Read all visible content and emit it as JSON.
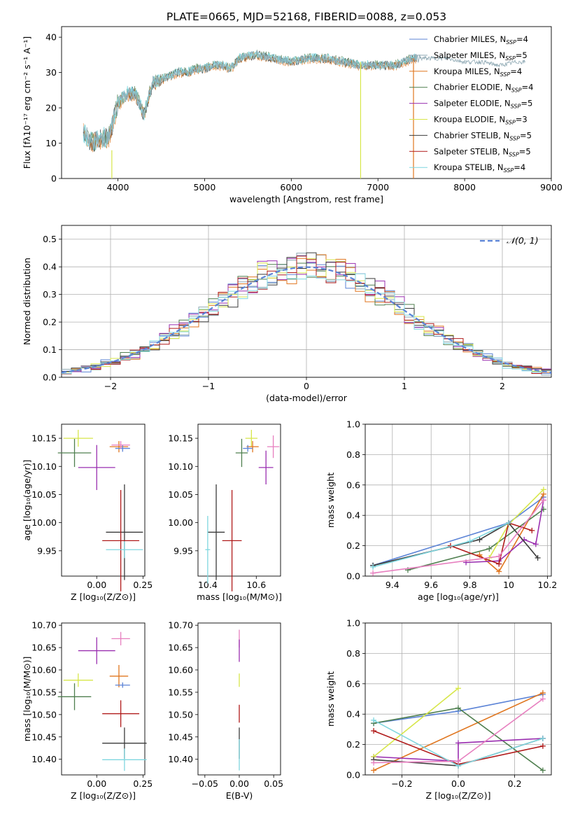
{
  "figure": {
    "title": "PLATE=0665, MJD=52168, FIBERID=0088, z=0.053"
  },
  "colors": {
    "chabrier_miles": "#5b83d6",
    "salpeter_miles": "#8fa9b4",
    "kroupa_miles": "#e0761f",
    "chabrier_elodie": "#4f7f4f",
    "salpeter_elodie": "#9a2fb0",
    "kroupa_elodie": "#d7e64a",
    "chabrier_stelib": "#3b3b3b",
    "salpeter_stelib": "#b01a1a",
    "kroupa_stelib": "#7fd6df",
    "pink": "#e77fbf"
  },
  "chart_data": [
    {
      "id": "spectrum",
      "type": "line",
      "xlabel": "wavelength [Angstrom, rest frame]",
      "ylabel": "Flux [fλ10⁻¹⁷ erg cm⁻² s⁻¹ A⁻¹]",
      "xlim": [
        3350,
        9000
      ],
      "ylim": [
        0,
        43
      ],
      "xticks": [
        4000,
        5000,
        6000,
        7000,
        8000,
        9000
      ],
      "yticks": [
        0,
        10,
        20,
        30,
        40
      ],
      "legend_position": "top-right",
      "legend": [
        {
          "label": "Chabrier MILES, N",
          "sub": "SSP",
          "value": "=4",
          "color_key": "chabrier_miles"
        },
        {
          "label": "Salpeter MILES, N",
          "sub": "SSP",
          "value": "=5",
          "color_key": "salpeter_miles"
        },
        {
          "label": "Kroupa MILES, N",
          "sub": "SSP",
          "value": "=4",
          "color_key": "kroupa_miles"
        },
        {
          "label": "Chabrier ELODIE, N",
          "sub": "SSP",
          "value": "=4",
          "color_key": "chabrier_elodie"
        },
        {
          "label": "Salpeter ELODIE, N",
          "sub": "SSP",
          "value": "=5",
          "color_key": "salpeter_elodie"
        },
        {
          "label": "Kroupa ELODIE, N",
          "sub": "SSP",
          "value": "=3",
          "color_key": "kroupa_elodie"
        },
        {
          "label": "Chabrier STELIB, N",
          "sub": "SSP",
          "value": "=5",
          "color_key": "chabrier_stelib"
        },
        {
          "label": "Salpeter STELIB, N",
          "sub": "SSP",
          "value": "=5",
          "color_key": "salpeter_stelib"
        },
        {
          "label": "Kroupa STELIB, N",
          "sub": "SSP",
          "value": "=4",
          "color_key": "kroupa_stelib"
        }
      ],
      "continuum": {
        "x": [
          3600,
          3700,
          3800,
          3900,
          4000,
          4100,
          4200,
          4300,
          4400,
          4500,
          4600,
          4700,
          4800,
          4900,
          5000,
          5100,
          5200,
          5300,
          5400,
          5600,
          5800,
          6000,
          6200,
          6400,
          6600,
          6800,
          7000,
          7200,
          7400,
          7600,
          7800,
          8000,
          8200,
          8400,
          8600,
          8700
        ],
        "y": [
          13,
          10,
          11,
          12,
          21,
          24,
          24,
          18,
          27,
          28,
          29,
          30,
          30,
          31,
          31,
          32,
          32,
          31,
          34,
          35,
          34,
          33,
          34,
          34,
          33,
          32,
          32,
          32,
          34,
          34,
          34,
          33,
          33,
          32,
          33,
          33
        ]
      }
    },
    {
      "id": "residuals",
      "type": "histogram",
      "xlabel": "(data-model)/error",
      "ylabel": "Normed distribution",
      "xlim": [
        -2.5,
        2.5
      ],
      "ylim": [
        0,
        0.55
      ],
      "xticks": [
        -2,
        -1,
        0,
        1,
        2
      ],
      "yticks": [
        0.0,
        0.1,
        0.2,
        0.3,
        0.4,
        0.5
      ],
      "grid": true,
      "legend_position": "top-right",
      "legend": [
        {
          "label": "𝒩(0, 1)",
          "color_key": "chabrier_miles"
        }
      ],
      "bin_width": 0.1
    },
    {
      "id": "age_vs_Z",
      "type": "errorbar",
      "xlabel": "Z [log₁₀(Z/Z⊙)]",
      "ylabel": "age  [log₁₀(age/yr)]",
      "xlim": [
        -0.19,
        0.26
      ],
      "ylim": [
        9.905,
        10.175
      ],
      "xticks": [
        -0.0,
        0.25
      ],
      "xtick_labels": [
        "0.00",
        "0.25"
      ],
      "yticks": [
        9.95,
        10.0,
        10.05,
        10.1,
        10.15
      ],
      "points": [
        {
          "x": -0.12,
          "xerr": 0.09,
          "y": 10.124,
          "yerr": 0.025,
          "color_key": "chabrier_elodie"
        },
        {
          "x": -0.1,
          "xerr": 0.08,
          "y": 10.15,
          "yerr": 0.015,
          "color_key": "kroupa_elodie"
        },
        {
          "x": 0.0,
          "xerr": 0.1,
          "y": 10.098,
          "yerr": 0.04,
          "color_key": "salpeter_elodie"
        },
        {
          "x": 0.12,
          "xerr": 0.05,
          "y": 10.135,
          "yerr": 0.01,
          "color_key": "kroupa_miles"
        },
        {
          "x": 0.14,
          "xerr": 0.04,
          "y": 10.132,
          "yerr": 0.006,
          "color_key": "chabrier_miles"
        },
        {
          "x": 0.13,
          "xerr": 0.05,
          "y": 10.138,
          "yerr": 0.007,
          "color_key": "pink"
        },
        {
          "x": 0.15,
          "xerr": 0.1,
          "y": 9.983,
          "yerr": 0.085,
          "color_key": "chabrier_stelib"
        },
        {
          "x": 0.13,
          "xerr": 0.1,
          "y": 9.968,
          "yerr": 0.09,
          "color_key": "salpeter_stelib"
        },
        {
          "x": 0.15,
          "xerr": 0.1,
          "y": 9.952,
          "yerr": 0.015,
          "color_key": "kroupa_stelib"
        }
      ]
    },
    {
      "id": "age_vs_mass",
      "type": "errorbar",
      "xlabel": "mass [log₁₀(M/M⊙)]",
      "ylabel": "",
      "xlim": [
        10.36,
        10.7
      ],
      "ylim": [
        9.905,
        10.175
      ],
      "xticks": [
        10.4,
        10.6
      ],
      "yticks": [
        9.95,
        10.0,
        10.05,
        10.1,
        10.15
      ],
      "points": [
        {
          "x": 10.58,
          "xerr": 0.025,
          "y": 10.15,
          "yerr": 0.015,
          "color_key": "kroupa_elodie"
        },
        {
          "x": 10.54,
          "xerr": 0.025,
          "y": 10.124,
          "yerr": 0.025,
          "color_key": "chabrier_elodie"
        },
        {
          "x": 10.585,
          "xerr": 0.025,
          "y": 10.135,
          "yerr": 0.01,
          "color_key": "kroupa_miles"
        },
        {
          "x": 10.565,
          "xerr": 0.02,
          "y": 10.132,
          "yerr": 0.006,
          "color_key": "chabrier_miles"
        },
        {
          "x": 10.64,
          "xerr": 0.03,
          "y": 10.098,
          "yerr": 0.03,
          "color_key": "salpeter_elodie"
        },
        {
          "x": 10.67,
          "xerr": 0.025,
          "y": 10.135,
          "yerr": 0.02,
          "color_key": "pink"
        },
        {
          "x": 10.435,
          "xerr": 0.035,
          "y": 9.983,
          "yerr": 0.085,
          "color_key": "chabrier_stelib"
        },
        {
          "x": 10.5,
          "xerr": 0.04,
          "y": 9.968,
          "yerr": 0.09,
          "color_key": "salpeter_stelib"
        },
        {
          "x": 10.4,
          "xerr": 0.01,
          "y": 9.952,
          "yerr": 0.06,
          "color_key": "kroupa_stelib"
        }
      ]
    },
    {
      "id": "massweight_vs_age",
      "type": "line",
      "xlabel": "age  [log₁₀(age/yr)]",
      "ylabel": "mass weight",
      "xlim": [
        9.26,
        10.22
      ],
      "ylim": [
        0,
        1.0
      ],
      "xticks": [
        9.4,
        9.6,
        9.8,
        10.0,
        10.2
      ],
      "yticks": [
        0.0,
        0.2,
        0.4,
        0.6,
        0.8,
        1.0
      ],
      "grid": true,
      "series": [
        {
          "color_key": "chabrier_miles",
          "x": [
            9.3,
            10.0,
            10.18
          ],
          "y": [
            0.07,
            0.35,
            0.52
          ]
        },
        {
          "color_key": "kroupa_miles",
          "x": [
            9.85,
            9.95,
            10.18
          ],
          "y": [
            0.14,
            0.03,
            0.54
          ]
        },
        {
          "color_key": "chabrier_elodie",
          "x": [
            9.48,
            9.9,
            10.18
          ],
          "y": [
            0.04,
            0.18,
            0.44
          ]
        },
        {
          "color_key": "salpeter_elodie",
          "x": [
            9.78,
            9.95,
            10.08,
            10.14,
            10.18
          ],
          "y": [
            0.09,
            0.1,
            0.24,
            0.21,
            0.5
          ]
        },
        {
          "color_key": "kroupa_elodie",
          "x": [
            9.9,
            10.0,
            10.18
          ],
          "y": [
            0.12,
            0.34,
            0.57
          ]
        },
        {
          "color_key": "chabrier_stelib",
          "x": [
            9.3,
            9.85,
            10.0,
            10.15
          ],
          "y": [
            0.07,
            0.24,
            0.35,
            0.12
          ]
        },
        {
          "color_key": "salpeter_stelib",
          "x": [
            9.7,
            9.95,
            10.0,
            10.12
          ],
          "y": [
            0.2,
            0.08,
            0.35,
            0.3
          ]
        },
        {
          "color_key": "kroupa_stelib",
          "x": [
            9.3,
            9.8,
            10.0
          ],
          "y": [
            0.06,
            0.23,
            0.35
          ]
        },
        {
          "color_key": "pink",
          "x": [
            9.3,
            9.95,
            10.18
          ],
          "y": [
            0.02,
            0.13,
            0.5
          ]
        }
      ]
    },
    {
      "id": "mass_vs_Z",
      "type": "errorbar",
      "xlabel": "Z [log₁₀(Z/Z⊙)]",
      "ylabel": "mass [log₁₀(M/M⊙)]",
      "xlim": [
        -0.19,
        0.26
      ],
      "ylim": [
        10.365,
        10.705
      ],
      "xticks": [
        -0.0,
        0.25
      ],
      "xtick_labels": [
        "0.00",
        "0.25"
      ],
      "yticks": [
        10.4,
        10.45,
        10.5,
        10.55,
        10.6,
        10.65,
        10.7
      ],
      "points": [
        {
          "x": -0.12,
          "xerr": 0.09,
          "y": 10.54,
          "yerr": 0.03,
          "color_key": "chabrier_elodie"
        },
        {
          "x": -0.1,
          "xerr": 0.08,
          "y": 10.577,
          "yerr": 0.015,
          "color_key": "kroupa_elodie"
        },
        {
          "x": 0.0,
          "xerr": 0.1,
          "y": 10.643,
          "yerr": 0.03,
          "color_key": "salpeter_elodie"
        },
        {
          "x": 0.13,
          "xerr": 0.05,
          "y": 10.67,
          "yerr": 0.015,
          "color_key": "pink"
        },
        {
          "x": 0.12,
          "xerr": 0.05,
          "y": 10.586,
          "yerr": 0.025,
          "color_key": "kroupa_miles"
        },
        {
          "x": 0.14,
          "xerr": 0.04,
          "y": 10.566,
          "yerr": 0.006,
          "color_key": "chabrier_miles"
        },
        {
          "x": 0.13,
          "xerr": 0.1,
          "y": 10.502,
          "yerr": 0.03,
          "color_key": "salpeter_stelib"
        },
        {
          "x": 0.15,
          "xerr": 0.12,
          "y": 10.436,
          "yerr": 0.035,
          "color_key": "chabrier_stelib"
        },
        {
          "x": 0.15,
          "xerr": 0.12,
          "y": 10.399,
          "yerr": 0.025,
          "color_key": "kroupa_stelib"
        }
      ]
    },
    {
      "id": "mass_vs_ebv",
      "type": "errorbar",
      "xlabel": "E(B-V)",
      "ylabel": "",
      "xlim": [
        -0.06,
        0.06
      ],
      "ylim": [
        10.365,
        10.705
      ],
      "xticks": [
        -0.05,
        0.0,
        0.05
      ],
      "xtick_labels": [
        "−0.05",
        "0.00",
        "0.05"
      ],
      "yticks": [
        10.4,
        10.45,
        10.5,
        10.55,
        10.6,
        10.65,
        10.7
      ],
      "points": [
        {
          "x": 0.0,
          "xerr": 0.0,
          "y": 10.67,
          "yerr": 0.02,
          "color_key": "pink"
        },
        {
          "x": 0.0,
          "xerr": 0.0,
          "y": 10.643,
          "yerr": 0.025,
          "color_key": "salpeter_elodie"
        },
        {
          "x": 0.0,
          "xerr": 0.0,
          "y": 10.577,
          "yerr": 0.015,
          "color_key": "kroupa_elodie"
        },
        {
          "x": 0.0,
          "xerr": 0.0,
          "y": 10.502,
          "yerr": 0.02,
          "color_key": "salpeter_stelib"
        },
        {
          "x": 0.0,
          "xerr": 0.0,
          "y": 10.436,
          "yerr": 0.035,
          "color_key": "chabrier_stelib"
        },
        {
          "x": 0.0,
          "xerr": 0.0,
          "y": 10.41,
          "yerr": 0.035,
          "color_key": "kroupa_stelib"
        }
      ]
    },
    {
      "id": "massweight_vs_Z",
      "type": "line",
      "xlabel": "Z [log₁₀(Z/Z⊙)]",
      "ylabel": "mass weight",
      "xlim": [
        -0.33,
        0.33
      ],
      "ylim": [
        0,
        1.0
      ],
      "xticks": [
        -0.2,
        0.0,
        0.2
      ],
      "xtick_labels": [
        "−0.2",
        "0.0",
        "0.2"
      ],
      "yticks": [
        0.0,
        0.2,
        0.4,
        0.6,
        0.8,
        1.0
      ],
      "grid": true,
      "series": [
        {
          "color_key": "chabrier_miles",
          "x": [
            -0.3,
            0.0,
            0.3
          ],
          "y": [
            0.34,
            0.42,
            0.53
          ]
        },
        {
          "color_key": "kroupa_miles",
          "x": [
            -0.3,
            0.3
          ],
          "y": [
            0.03,
            0.54
          ]
        },
        {
          "color_key": "chabrier_elodie",
          "x": [
            -0.3,
            0.0,
            0.3
          ],
          "y": [
            0.34,
            0.44,
            0.03
          ]
        },
        {
          "color_key": "salpeter_elodie",
          "x": [
            -0.3,
            0.0,
            0.0,
            0.3
          ],
          "y": [
            0.12,
            0.09,
            0.21,
            0.24
          ]
        },
        {
          "color_key": "kroupa_elodie",
          "x": [
            -0.3,
            0.0
          ],
          "y": [
            0.12,
            0.57
          ]
        },
        {
          "color_key": "chabrier_stelib",
          "x": [
            -0.3,
            0.0,
            0.3
          ],
          "y": [
            0.1,
            0.06,
            0.24
          ]
        },
        {
          "color_key": "salpeter_stelib",
          "x": [
            -0.3,
            0.0,
            0.3
          ],
          "y": [
            0.29,
            0.07,
            0.19
          ]
        },
        {
          "color_key": "kroupa_stelib",
          "x": [
            -0.3,
            0.0,
            0.3
          ],
          "y": [
            0.36,
            0.06,
            0.24
          ]
        },
        {
          "color_key": "pink",
          "x": [
            -0.3,
            0.0,
            0.3
          ],
          "y": [
            0.08,
            0.09,
            0.5
          ]
        }
      ]
    }
  ]
}
